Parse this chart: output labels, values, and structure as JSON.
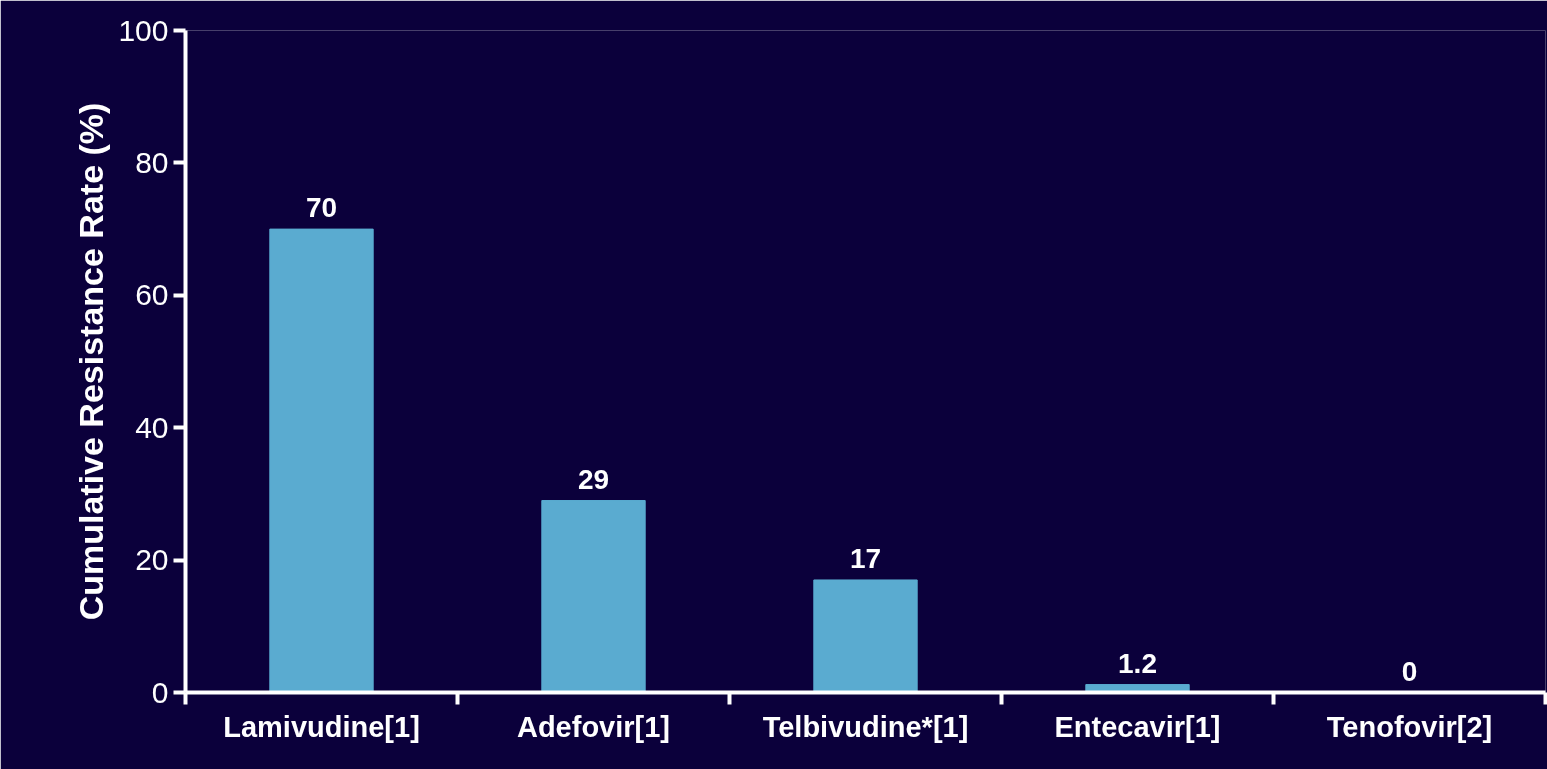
{
  "chart_data": {
    "type": "bar",
    "ylabel": "Cumulative Resistance Rate (%)",
    "categories": [
      "Lamivudine[1]",
      "Adefovir[1]",
      "Telbivudine*[1]",
      "Entecavir[1]",
      "Tenofovir[2]"
    ],
    "values": [
      70,
      29,
      17,
      1.2,
      0
    ],
    "color": "#5aabd0",
    "ylim": [
      0,
      100
    ],
    "yticks": [
      0,
      20,
      40,
      60,
      80,
      100
    ],
    "data_labels": true,
    "grid": false
  }
}
